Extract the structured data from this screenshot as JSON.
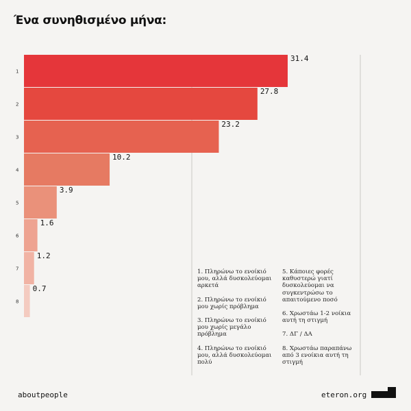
{
  "title": "Ένα συνηθισμένο μήνα:",
  "chart_data": {
    "type": "bar",
    "orientation": "horizontal",
    "categories": [
      "1",
      "2",
      "3",
      "4",
      "5",
      "6",
      "7",
      "8"
    ],
    "values": [
      31.4,
      27.8,
      23.2,
      10.2,
      3.9,
      1.6,
      1.2,
      0.7
    ],
    "value_labels": [
      "31.4",
      "27.8",
      "23.2",
      "10.2",
      "3.9",
      "1.6",
      "1.2",
      "0.7"
    ],
    "colors": [
      "#e5363a",
      "#e5483f",
      "#e66250",
      "#e67a62",
      "#ea917a",
      "#eea391",
      "#f1b3a4",
      "#f4cbc0"
    ],
    "gridlines": "on"
  },
  "legend": {
    "left": [
      "1. Πληρώνω το ενοίκιό μου, αλλά δυσκολεύομαι αρκετά",
      "2. Πληρώνω το ενοίκιό μου χωρίς πρόβλημα",
      "3. Πληρώνω το ενοίκιό μου χωρίς μεγάλο πρόβλημα",
      "4. Πληρώνω το ενοίκιό μου, αλλά δυσκολεύομαι πολύ"
    ],
    "right": [
      "5. Κάποιες φορές καθυστερώ γιατί δυσκολεύομαι να συγκεντρώσω το απαιτούμενο ποσό",
      "6. Χρωστάω 1-2 νοίκια αυτή τη στιγμή",
      "7. ΔΓ / ΔΑ",
      "8. Χρωστάω παραπάνω από 3 ενοίκια αυτή τη στιγμή"
    ]
  },
  "footer": {
    "left": "aboutpeople",
    "right": "eteron.org"
  }
}
